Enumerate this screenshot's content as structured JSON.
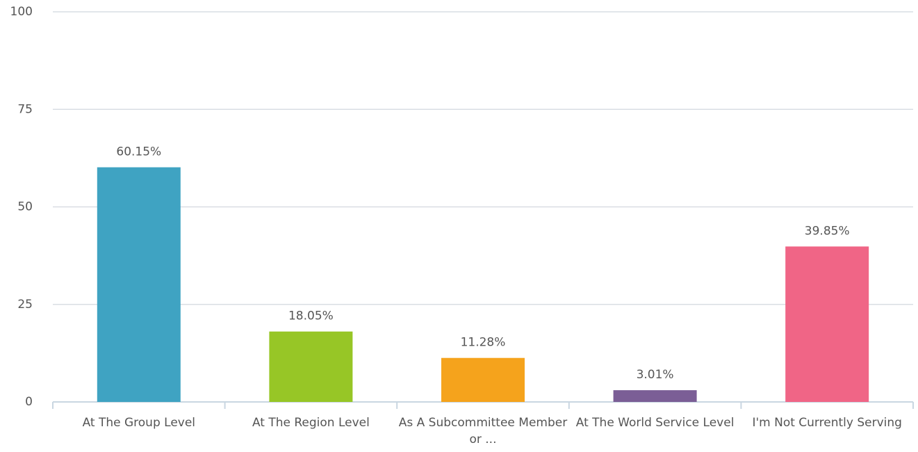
{
  "chart_data": {
    "type": "bar",
    "categories": [
      "At The Group Level",
      "At The Region Level",
      "As A Subcommittee Member or ...",
      "At The World Service Level",
      "I'm Not Currently Serving"
    ],
    "values": [
      60.15,
      18.05,
      11.28,
      3.01,
      39.85
    ],
    "value_labels": [
      "60.15%",
      "18.05%",
      "11.28%",
      "3.01%",
      "39.85%"
    ],
    "colors": [
      "#3fa3c2",
      "#97c626",
      "#f5a31c",
      "#7b5e96",
      "#f06586"
    ],
    "ylim": [
      0,
      100
    ],
    "yticks": [
      0,
      25,
      50,
      75,
      100
    ],
    "grid": true
  }
}
